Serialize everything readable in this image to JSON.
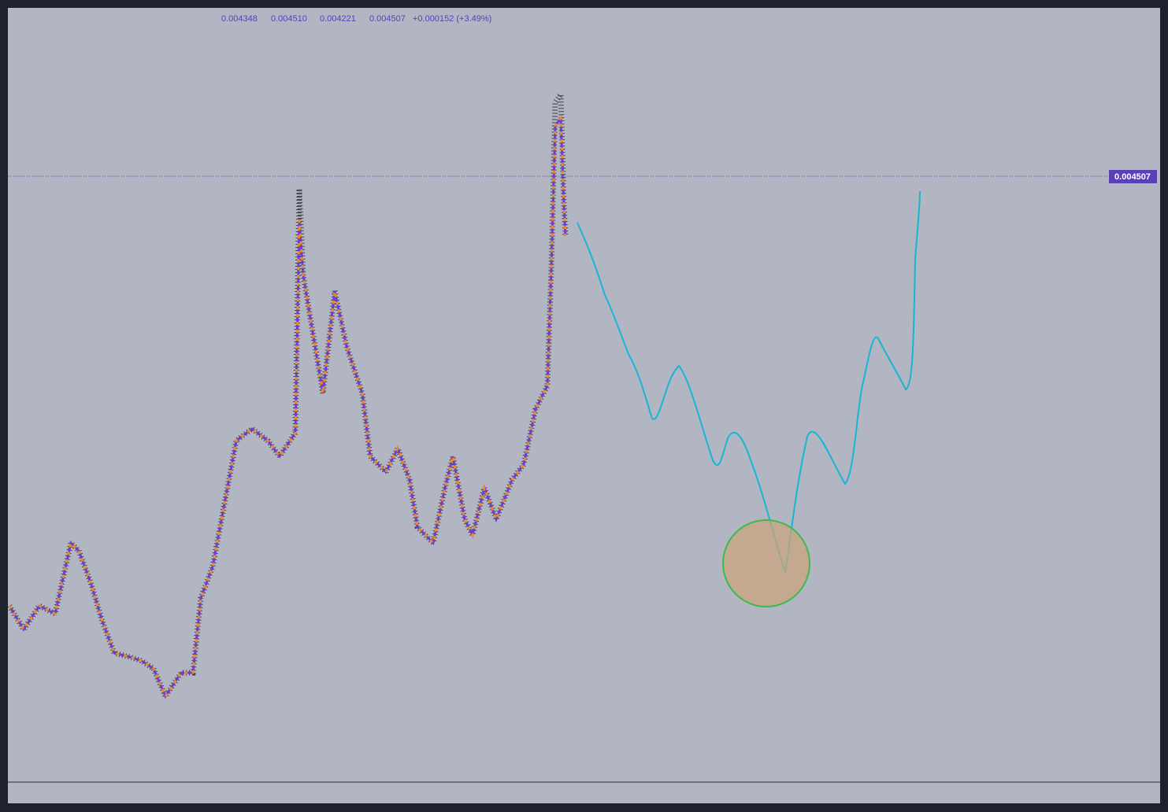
{
  "header": {
    "open": "0.004348",
    "high": "0.004510",
    "low": "0.004221",
    "close": "0.004507",
    "change": "+0.000152 (+3.49%)"
  },
  "price_label": "0.004507"
}
